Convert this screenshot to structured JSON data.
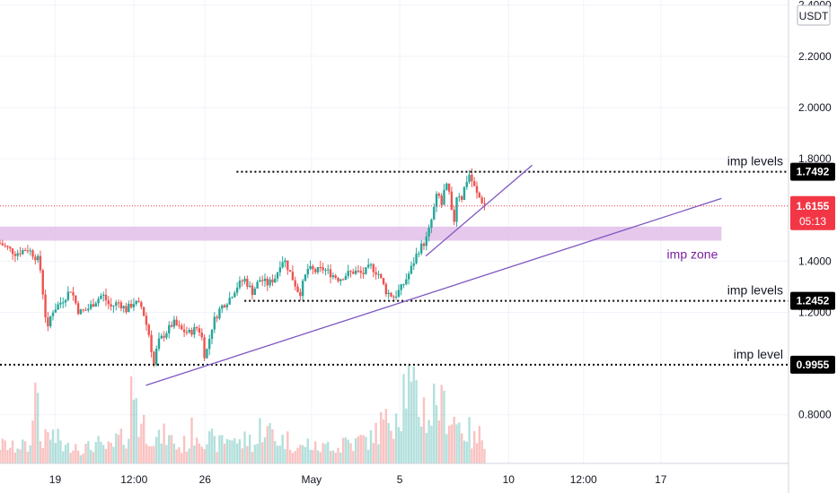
{
  "chart_data": {
    "type": "candlestick",
    "currency": "USDT",
    "y_range": [
      0.61,
      2.42
    ],
    "y_ticks": [
      {
        "value": 2.4,
        "label": "2.4000"
      },
      {
        "value": 2.2,
        "label": "2.2000"
      },
      {
        "value": 2.0,
        "label": "2.0000"
      },
      {
        "value": 1.8,
        "label": "1.8000"
      },
      {
        "value": 1.4,
        "label": "1.4000"
      },
      {
        "value": 1.2,
        "label": "1.2000"
      },
      {
        "value": 0.8,
        "label": "0.8000"
      }
    ],
    "x_ticks": [
      {
        "label": "19",
        "pos": 0.07
      },
      {
        "label": "12:00",
        "pos": 0.17
      },
      {
        "label": "26",
        "pos": 0.26
      },
      {
        "label": "May",
        "pos": 0.395
      },
      {
        "label": "5",
        "pos": 0.507
      },
      {
        "label": "10",
        "pos": 0.645
      },
      {
        "label": "12:00",
        "pos": 0.74
      },
      {
        "label": "17",
        "pos": 0.838
      }
    ],
    "price_path": [
      [
        0.0,
        1.47
      ],
      [
        0.02,
        1.43
      ],
      [
        0.035,
        1.45
      ],
      [
        0.05,
        1.4
      ],
      [
        0.06,
        1.12
      ],
      [
        0.065,
        1.2
      ],
      [
        0.08,
        1.25
      ],
      [
        0.09,
        1.29
      ],
      [
        0.1,
        1.2
      ],
      [
        0.11,
        1.21
      ],
      [
        0.12,
        1.24
      ],
      [
        0.13,
        1.27
      ],
      [
        0.14,
        1.22
      ],
      [
        0.15,
        1.24
      ],
      [
        0.16,
        1.21
      ],
      [
        0.17,
        1.24
      ],
      [
        0.18,
        1.22
      ],
      [
        0.19,
        1.1
      ],
      [
        0.195,
        0.99
      ],
      [
        0.2,
        1.08
      ],
      [
        0.21,
        1.12
      ],
      [
        0.22,
        1.16
      ],
      [
        0.23,
        1.13
      ],
      [
        0.24,
        1.12
      ],
      [
        0.25,
        1.14
      ],
      [
        0.255,
        1.12
      ],
      [
        0.26,
        1.02
      ],
      [
        0.27,
        1.16
      ],
      [
        0.28,
        1.22
      ],
      [
        0.29,
        1.25
      ],
      [
        0.3,
        1.3
      ],
      [
        0.31,
        1.33
      ],
      [
        0.32,
        1.28
      ],
      [
        0.33,
        1.33
      ],
      [
        0.34,
        1.31
      ],
      [
        0.35,
        1.34
      ],
      [
        0.355,
        1.39
      ],
      [
        0.36,
        1.41
      ],
      [
        0.37,
        1.34
      ],
      [
        0.38,
        1.27
      ],
      [
        0.39,
        1.37
      ],
      [
        0.4,
        1.36
      ],
      [
        0.41,
        1.37
      ],
      [
        0.42,
        1.35
      ],
      [
        0.43,
        1.33
      ],
      [
        0.44,
        1.35
      ],
      [
        0.45,
        1.36
      ],
      [
        0.46,
        1.35
      ],
      [
        0.47,
        1.38
      ],
      [
        0.48,
        1.35
      ],
      [
        0.49,
        1.28
      ],
      [
        0.5,
        1.26
      ],
      [
        0.51,
        1.3
      ],
      [
        0.52,
        1.36
      ],
      [
        0.53,
        1.44
      ],
      [
        0.54,
        1.48
      ],
      [
        0.545,
        1.53
      ],
      [
        0.55,
        1.6
      ],
      [
        0.555,
        1.67
      ],
      [
        0.56,
        1.62
      ],
      [
        0.565,
        1.7
      ],
      [
        0.57,
        1.66
      ],
      [
        0.575,
        1.53
      ],
      [
        0.58,
        1.68
      ],
      [
        0.585,
        1.64
      ],
      [
        0.59,
        1.7
      ],
      [
        0.595,
        1.74
      ],
      [
        0.6,
        1.7
      ],
      [
        0.605,
        1.66
      ],
      [
        0.61,
        1.64
      ],
      [
        0.615,
        1.62
      ]
    ],
    "volume_path": [
      0.23,
      0.2,
      0.24,
      0.2,
      0.9,
      0.3,
      0.35,
      0.3,
      0.2,
      0.25,
      0.2,
      0.2,
      0.25,
      0.2,
      0.2,
      0.3,
      0.35,
      0.9,
      0.5,
      0.4,
      0.3,
      0.35,
      0.3,
      0.2,
      0.25,
      0.4,
      0.35,
      0.3,
      0.25,
      0.3,
      0.35,
      0.25,
      0.3,
      0.25,
      0.45,
      0.4,
      0.3,
      0.3,
      0.25,
      0.2,
      0.25,
      0.2,
      0.2,
      0.25,
      0.2,
      0.3,
      0.25,
      0.3,
      0.3,
      0.4,
      0.5,
      0.6,
      0.7,
      1.0,
      0.85,
      0.7,
      0.6,
      0.8,
      0.7,
      0.6,
      0.5,
      0.4,
      0.3,
      0.35,
      0.2
    ],
    "levels": [
      {
        "name": "resistance-level",
        "value": 1.7492,
        "label": "1.7492",
        "note": "imp levels",
        "line_start": 0.3
      },
      {
        "name": "support-level",
        "value": 1.2452,
        "label": "1.2452",
        "note": "imp levels",
        "line_start": 0.31
      },
      {
        "name": "bottom-level",
        "value": 0.9955,
        "label": "0.9955",
        "note": "imp level",
        "line_start": 0.0
      }
    ],
    "imp_zone": {
      "label": "imp zone",
      "top": 1.535,
      "bottom": 1.48,
      "x_end": 0.915,
      "color": "#e1bee7"
    },
    "trendlines": [
      {
        "name": "long-trendline",
        "from": [
          0.185,
          0.915
        ],
        "to": [
          0.915,
          1.645
        ]
      },
      {
        "name": "short-trendline",
        "from": [
          0.54,
          1.42
        ],
        "to": [
          0.675,
          1.775
        ]
      }
    ],
    "current_price": {
      "label": "1.6155",
      "value": 1.6155,
      "countdown": "05:13",
      "color": "#f23645"
    },
    "badge_color": "#000000",
    "trend_color": "#7e57c2",
    "up_color": "#26a69a",
    "down_color": "#ef5350"
  }
}
